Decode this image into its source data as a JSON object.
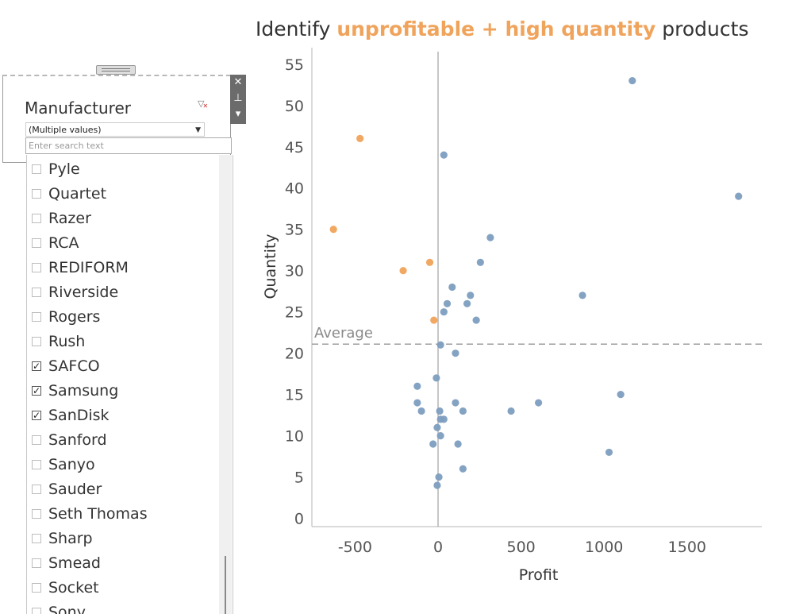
{
  "title": {
    "prefix": "Identify ",
    "highlight": "unprofitable + high quantity",
    "suffix": " products"
  },
  "colors": {
    "highlight": "#f0a35b",
    "profitable": "#7d9ec0",
    "average_line": "#9e9e9e",
    "axis": "#b5b5b5"
  },
  "filter": {
    "title": "Manufacturer",
    "clear_icon": "clear-filter-icon",
    "selected_value": "(Multiple values)",
    "search_placeholder": "Enter search text",
    "tools": [
      "close-icon",
      "pin-icon",
      "menu-down-icon"
    ],
    "items": [
      {
        "label": "Pyle",
        "checked": false
      },
      {
        "label": "Quartet",
        "checked": false
      },
      {
        "label": "Razer",
        "checked": false
      },
      {
        "label": "RCA",
        "checked": false
      },
      {
        "label": "REDIFORM",
        "checked": false
      },
      {
        "label": "Riverside",
        "checked": false
      },
      {
        "label": "Rogers",
        "checked": false
      },
      {
        "label": "Rush",
        "checked": false
      },
      {
        "label": "SAFCO",
        "checked": true
      },
      {
        "label": "Samsung",
        "checked": true
      },
      {
        "label": "SanDisk",
        "checked": true
      },
      {
        "label": "Sanford",
        "checked": false
      },
      {
        "label": "Sanyo",
        "checked": false
      },
      {
        "label": "Sauder",
        "checked": false
      },
      {
        "label": "Seth Thomas",
        "checked": false
      },
      {
        "label": "Sharp",
        "checked": false
      },
      {
        "label": "Smead",
        "checked": false
      },
      {
        "label": "Socket",
        "checked": false
      },
      {
        "label": "Sony",
        "checked": false
      }
    ]
  },
  "chart_data": {
    "type": "scatter",
    "xlabel": "Profit",
    "ylabel": "Quantity",
    "xlim": [
      -760,
      1950
    ],
    "ylim": [
      -1,
      57
    ],
    "x_ticks": [
      -500,
      0,
      500,
      1000,
      1500
    ],
    "x_tick_labels": [
      "-500",
      "0",
      "500",
      "1000",
      "1500"
    ],
    "y_ticks": [
      0,
      5,
      10,
      15,
      20,
      25,
      30,
      35,
      40,
      45,
      50,
      55
    ],
    "y_tick_labels": [
      "0",
      "5",
      "10",
      "15",
      "20",
      "25",
      "30",
      "35",
      "40",
      "45",
      "50",
      "55"
    ],
    "grid": false,
    "zero_line_x": 0,
    "reference_line": {
      "label": "Average",
      "y": 21.1
    },
    "points": [
      {
        "x": -470,
        "y": 46,
        "highlight": true
      },
      {
        "x": -630,
        "y": 35,
        "highlight": true
      },
      {
        "x": -210,
        "y": 30,
        "highlight": true
      },
      {
        "x": -50,
        "y": 31,
        "highlight": true
      },
      {
        "x": -25,
        "y": 24,
        "highlight": true
      },
      {
        "x": 1170,
        "y": 53,
        "highlight": false
      },
      {
        "x": 1810,
        "y": 39,
        "highlight": false
      },
      {
        "x": 35,
        "y": 44,
        "highlight": false
      },
      {
        "x": 315,
        "y": 34,
        "highlight": false
      },
      {
        "x": 255,
        "y": 31,
        "highlight": false
      },
      {
        "x": 870,
        "y": 27,
        "highlight": false
      },
      {
        "x": 85,
        "y": 28,
        "highlight": false
      },
      {
        "x": 195,
        "y": 27,
        "highlight": false
      },
      {
        "x": 55,
        "y": 26,
        "highlight": false
      },
      {
        "x": 175,
        "y": 26,
        "highlight": false
      },
      {
        "x": 35,
        "y": 25,
        "highlight": false
      },
      {
        "x": 230,
        "y": 24,
        "highlight": false
      },
      {
        "x": 15,
        "y": 21,
        "highlight": false
      },
      {
        "x": 105,
        "y": 20,
        "highlight": false
      },
      {
        "x": -10,
        "y": 17,
        "highlight": false
      },
      {
        "x": -125,
        "y": 16,
        "highlight": false
      },
      {
        "x": 1100,
        "y": 15,
        "highlight": false
      },
      {
        "x": -125,
        "y": 14,
        "highlight": false
      },
      {
        "x": 105,
        "y": 14,
        "highlight": false
      },
      {
        "x": 605,
        "y": 14,
        "highlight": false
      },
      {
        "x": -100,
        "y": 13,
        "highlight": false
      },
      {
        "x": 10,
        "y": 13,
        "highlight": false
      },
      {
        "x": 150,
        "y": 13,
        "highlight": false
      },
      {
        "x": 440,
        "y": 13,
        "highlight": false
      },
      {
        "x": 15,
        "y": 12,
        "highlight": false
      },
      {
        "x": 35,
        "y": 12,
        "highlight": false
      },
      {
        "x": -5,
        "y": 11,
        "highlight": false
      },
      {
        "x": 15,
        "y": 10,
        "highlight": false
      },
      {
        "x": -30,
        "y": 9,
        "highlight": false
      },
      {
        "x": 120,
        "y": 9,
        "highlight": false
      },
      {
        "x": 1030,
        "y": 8,
        "highlight": false
      },
      {
        "x": 150,
        "y": 6,
        "highlight": false
      },
      {
        "x": 5,
        "y": 5,
        "highlight": false
      },
      {
        "x": -5,
        "y": 4,
        "highlight": false
      }
    ]
  }
}
